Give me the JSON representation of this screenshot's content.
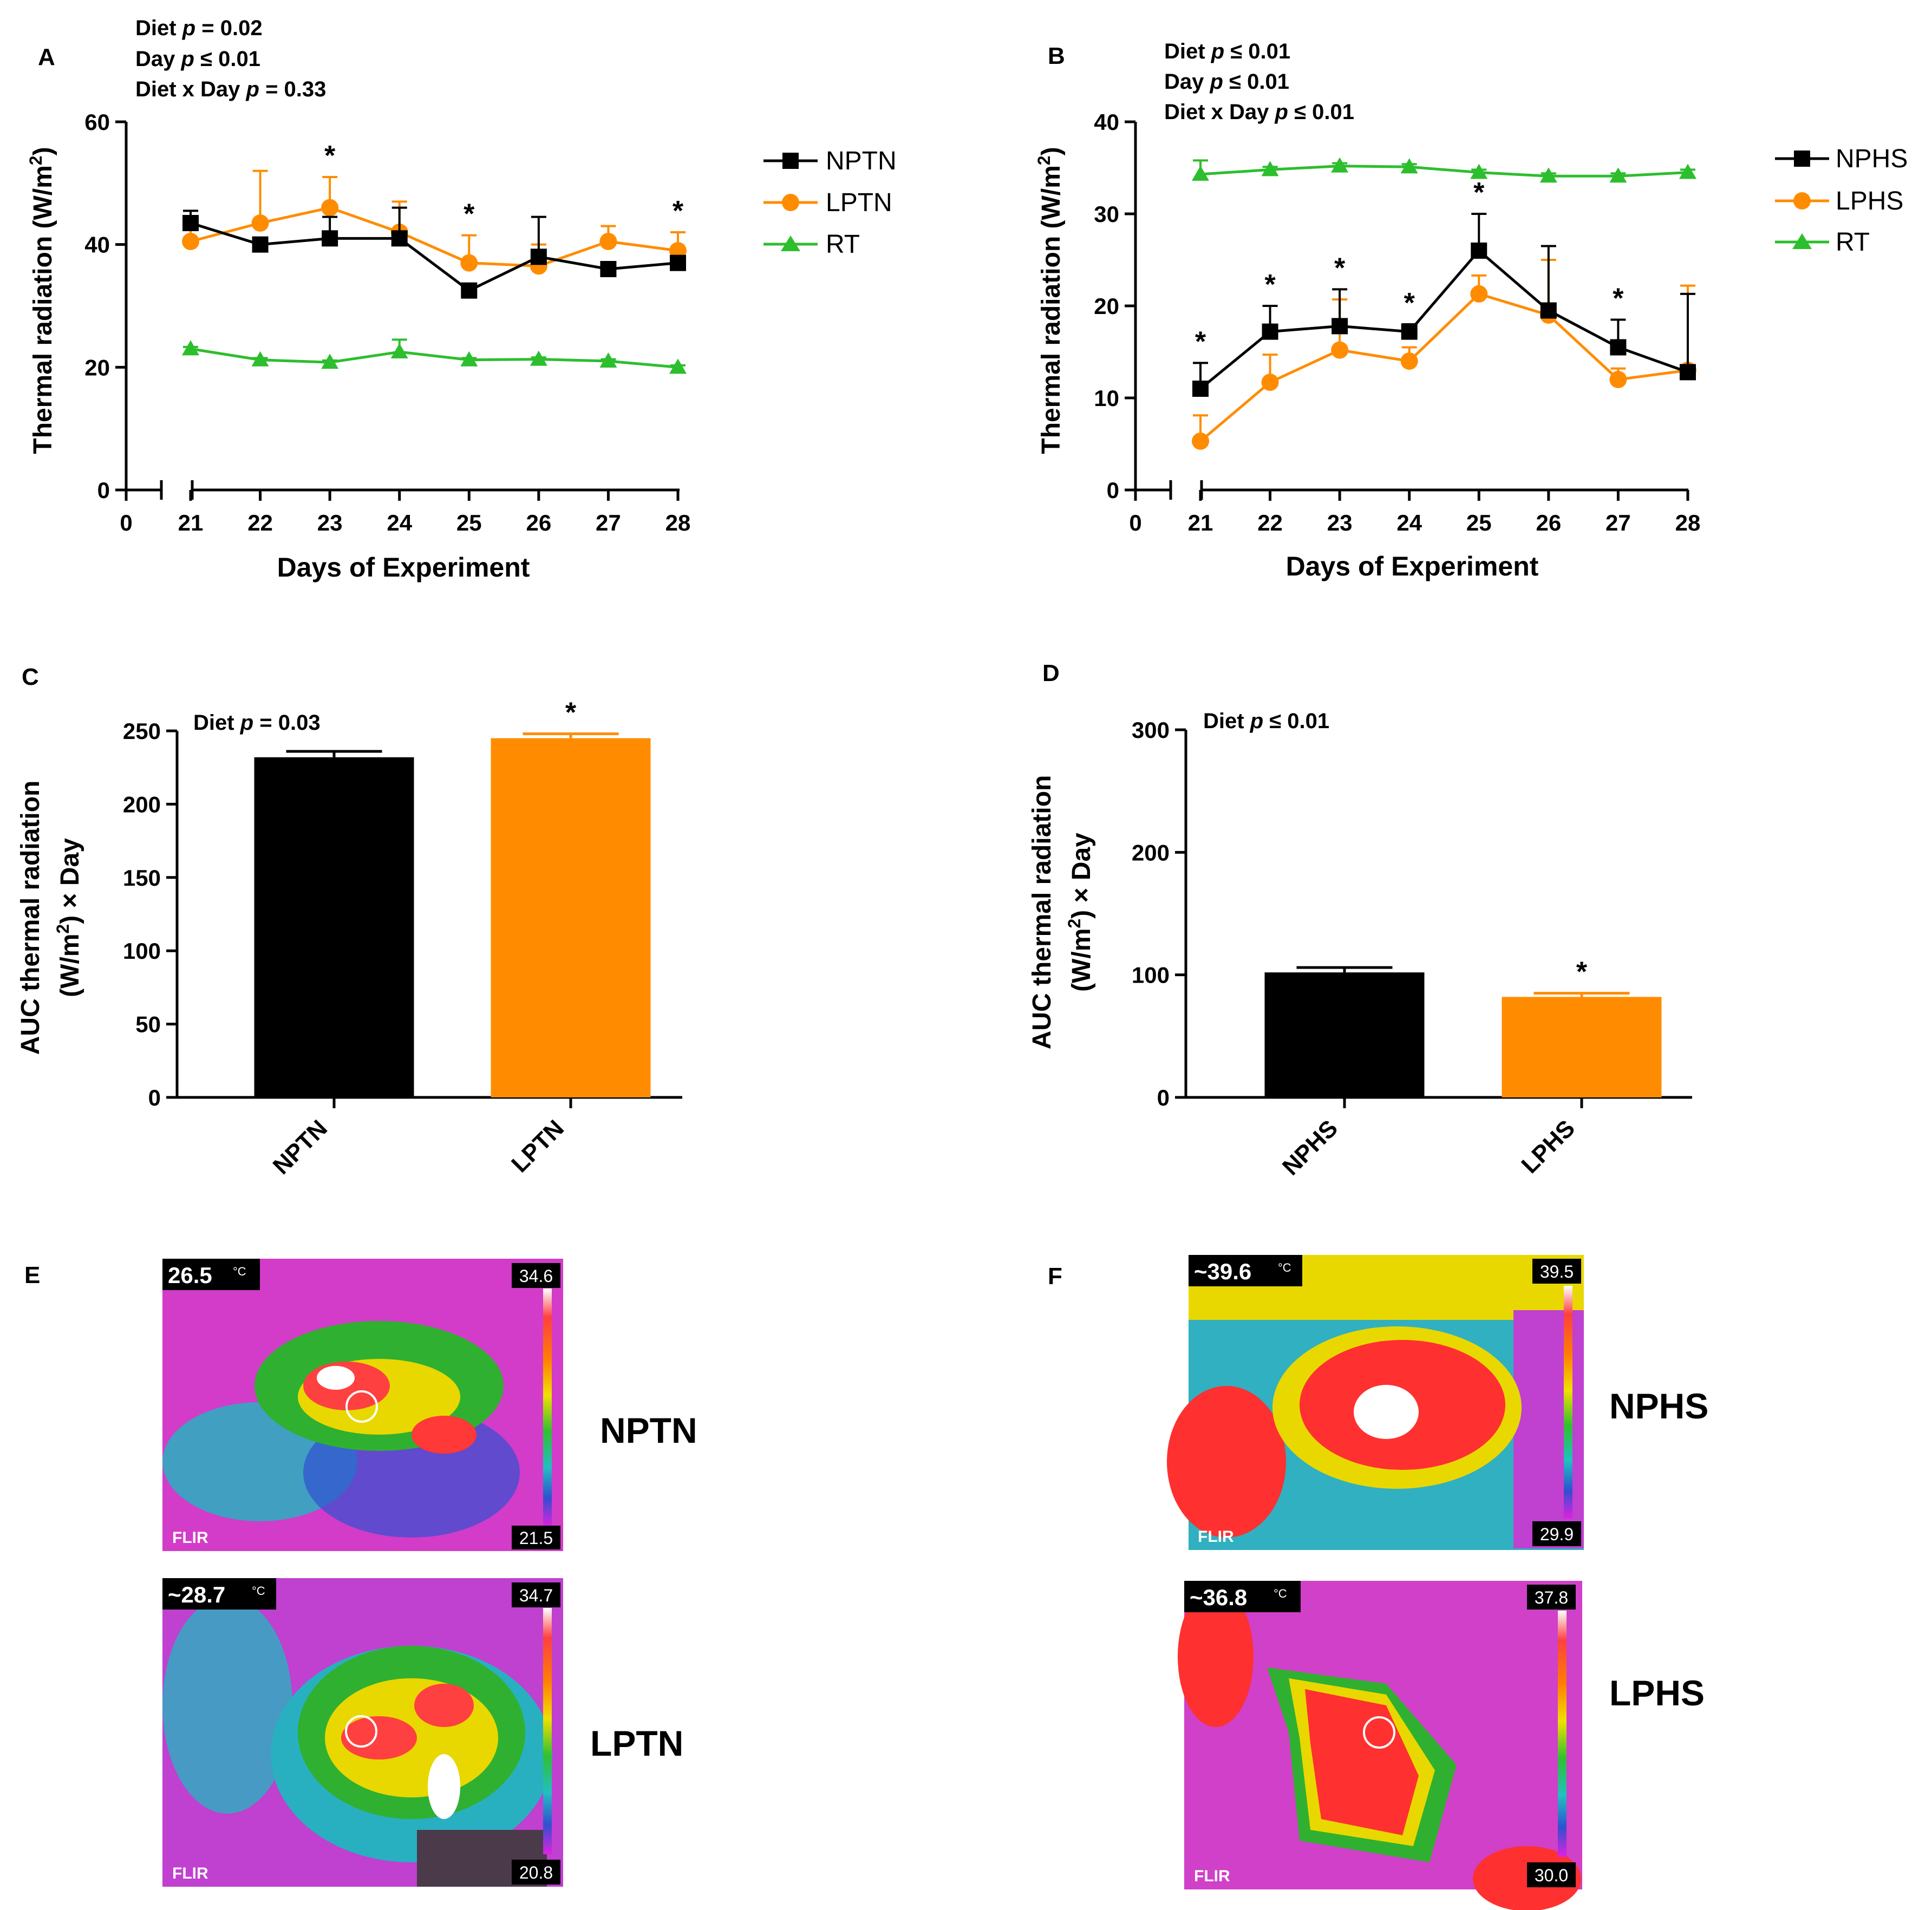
{
  "colors": {
    "black": "#000000",
    "orange": "#FF8C00",
    "green": "#2DBE2D"
  },
  "chart_data": [
    {
      "panel": "A",
      "type": "line",
      "stats": {
        "l1a": "Diet ",
        "l1b": "p",
        "l1c": " = 0.02",
        "l2a": "Day ",
        "l2b": "p",
        "l2c": " ≤ 0.01",
        "l3a": "Diet x Day ",
        "l3b": "p",
        "l3c": " = 0.33"
      },
      "ylabel_main": "Thermal radiation (W/m",
      "ylabel_sup": "2",
      "ylabel_tail": ")",
      "xlabel": "Days of Experiment",
      "ylim": [
        0,
        60
      ],
      "yticks": [
        "0",
        "20",
        "40",
        "60"
      ],
      "x_zero_label": "0",
      "x": [
        21,
        22,
        23,
        24,
        25,
        26,
        27,
        28
      ],
      "xtick_labels": [
        "21",
        "22",
        "23",
        "24",
        "25",
        "26",
        "27",
        "28"
      ],
      "series": [
        {
          "name": "NPTN",
          "color": "#000000",
          "marker": "square",
          "values": [
            43.5,
            40,
            41,
            41,
            32.5,
            38,
            36,
            37
          ],
          "errors": [
            2,
            0.5,
            3.5,
            5,
            1,
            6.5,
            0.5,
            0.5
          ]
        },
        {
          "name": "LPTN",
          "color": "#FF8C00",
          "marker": "circle",
          "values": [
            40.5,
            43.5,
            46,
            42,
            37,
            36.5,
            40.5,
            39
          ],
          "errors": [
            5,
            8.5,
            5,
            5,
            4.5,
            3.5,
            2.5,
            3
          ]
        },
        {
          "name": "RT",
          "color": "#2DBE2D",
          "marker": "triangle",
          "values": [
            23,
            21.2,
            20.8,
            22.5,
            21.2,
            21.3,
            21,
            20
          ],
          "errors": [
            0.3,
            0.3,
            0.3,
            2,
            0.3,
            0.3,
            0.3,
            0.3
          ]
        }
      ],
      "significance": [
        {
          "x": 23,
          "text": "*"
        },
        {
          "x": 25,
          "text": "*"
        },
        {
          "x": 28,
          "text": "*"
        }
      ]
    },
    {
      "panel": "B",
      "type": "line",
      "stats": {
        "l1a": "Diet ",
        "l1b": "p",
        "l1c": " ≤ 0.01",
        "l2a": "Day ",
        "l2b": "p",
        "l2c": " ≤ 0.01",
        "l3a": "Diet x Day ",
        "l3b": "p",
        "l3c": " ≤ 0.01"
      },
      "ylabel_main": "Thermal radiation (W/m",
      "ylabel_sup": "2",
      "ylabel_tail": ")",
      "xlabel": "Days of Experiment",
      "ylim": [
        0,
        40
      ],
      "yticks": [
        "0",
        "10",
        "20",
        "30",
        "40"
      ],
      "x_zero_label": "0",
      "x": [
        21,
        22,
        23,
        24,
        25,
        26,
        27,
        28
      ],
      "xtick_labels": [
        "21",
        "22",
        "23",
        "24",
        "25",
        "26",
        "27",
        "28"
      ],
      "series": [
        {
          "name": "NPHS",
          "color": "#000000",
          "marker": "square",
          "values": [
            11,
            17.2,
            17.8,
            17.2,
            26,
            19.5,
            15.5,
            12.8
          ],
          "errors": [
            2.8,
            2.8,
            4,
            0.8,
            4,
            7,
            3,
            8.5
          ]
        },
        {
          "name": "LPHS",
          "color": "#FF8C00",
          "marker": "circle",
          "values": [
            5.3,
            11.7,
            15.2,
            14,
            21.3,
            19,
            12,
            13
          ],
          "errors": [
            2.8,
            3,
            5.5,
            1.5,
            2,
            6,
            1.2,
            9.2
          ]
        },
        {
          "name": "RT",
          "color": "#2DBE2D",
          "marker": "triangle",
          "values": [
            34.3,
            34.8,
            35.2,
            35.1,
            34.5,
            34.1,
            34.1,
            34.5
          ],
          "errors": [
            1.5,
            0.3,
            0.3,
            0.3,
            0.3,
            0.3,
            0.3,
            0.3
          ]
        }
      ],
      "significance": [
        {
          "x": 21,
          "text": "*"
        },
        {
          "x": 22,
          "text": "*"
        },
        {
          "x": 23,
          "text": "*"
        },
        {
          "x": 24,
          "text": "*"
        },
        {
          "x": 25,
          "text": "*"
        },
        {
          "x": 27,
          "text": "*"
        }
      ]
    },
    {
      "panel": "C",
      "type": "bar",
      "stat": {
        "a": "Diet ",
        "b": "p",
        "c": " = 0.03"
      },
      "ylabel1": "AUC thermal radiation",
      "ylabel2a": "(W/m",
      "ylabel2sup": "2",
      "ylabel2b": ") × Day",
      "ylim": [
        0,
        250
      ],
      "yticks": [
        "0",
        "50",
        "100",
        "150",
        "200",
        "250"
      ],
      "categories": [
        "NPTN",
        "LPTN"
      ],
      "values": [
        232,
        245
      ],
      "errors": [
        4,
        3
      ],
      "colors": [
        "#000000",
        "#FF8C00"
      ],
      "significance": [
        {
          "index": 1,
          "text": "*"
        }
      ]
    },
    {
      "panel": "D",
      "type": "bar",
      "stat": {
        "a": "Diet ",
        "b": "p",
        "c": " ≤ 0.01"
      },
      "ylabel1": "AUC thermal radiation",
      "ylabel2a": "(W/m",
      "ylabel2sup": "2",
      "ylabel2b": ") × Day",
      "ylim": [
        0,
        300
      ],
      "yticks": [
        "0",
        "100",
        "200",
        "300"
      ],
      "categories": [
        "NPHS",
        "LPHS"
      ],
      "values": [
        102,
        82
      ],
      "errors": [
        4,
        3
      ],
      "colors": [
        "#000000",
        "#FF8C00"
      ],
      "significance": [
        {
          "index": 1,
          "text": "*"
        }
      ]
    }
  ],
  "thermal_images": {
    "panel_e": "E",
    "panel_f": "F",
    "images": [
      {
        "label": "NPTN",
        "spot": "26.5",
        "unit": "°C",
        "scale_max": "34.6",
        "scale_min": "21.5",
        "brand": "FLIR"
      },
      {
        "label": "LPTN",
        "spot": "~28.7",
        "unit": "°C",
        "scale_max": "34.7",
        "scale_min": "20.8",
        "brand": "FLIR"
      },
      {
        "label": "NPHS",
        "spot": "~39.6",
        "unit": "°C",
        "scale_max": "39.5",
        "scale_min": "29.9",
        "brand": "FLIR"
      },
      {
        "label": "LPHS",
        "spot": "~36.8",
        "unit": "°C",
        "scale_max": "37.8",
        "scale_min": "30.0",
        "brand": "FLIR"
      }
    ]
  }
}
